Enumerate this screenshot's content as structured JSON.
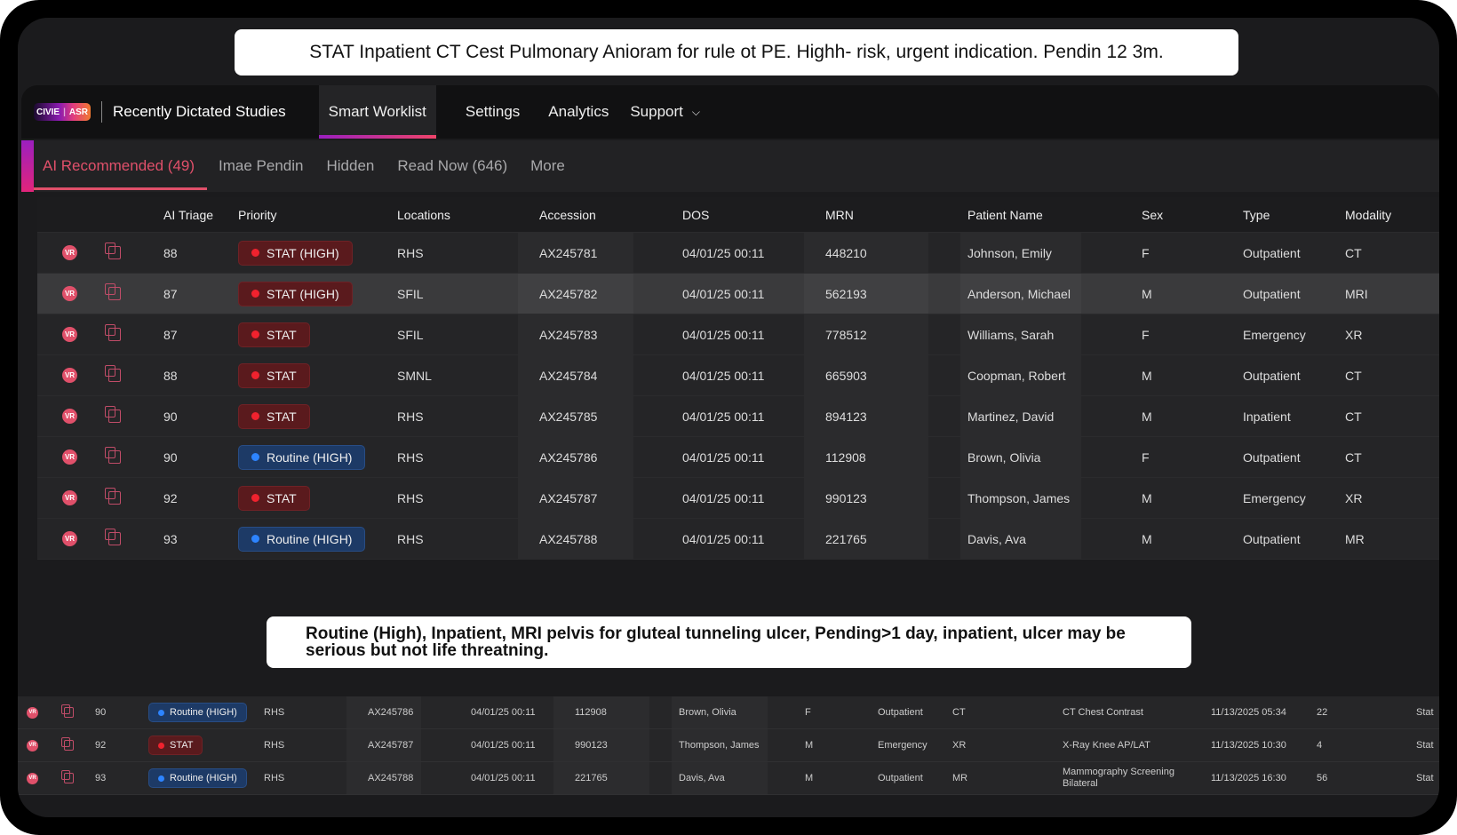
{
  "callouts": {
    "top": "STAT Inpatient CT Cest Pulmonary Anioram for rule ot PE. Highh- risk, urgent indication. Pendin 12 3m.",
    "bottom": "Routine (High), Inpatient, MRI pelvis for gluteal tunneling ulcer, Pending>1 day, inpatient, ulcer may be serious but not life threatning."
  },
  "nav": {
    "logo_left": "CIVIE",
    "logo_right": "ASR",
    "title": "Recently Dictated Studies",
    "tabs": [
      "Smart Worklist",
      "Settings",
      "Analytics",
      "Support"
    ],
    "support_icon": "chevron-down-icon"
  },
  "subtabs": [
    "AI Recommended (49)",
    "Imae Pendin",
    "Hidden",
    "Read Now (646)",
    "More"
  ],
  "colors": {
    "accent": "#e0506a",
    "stat": "#f0222e",
    "routine": "#2d84ff"
  },
  "table": {
    "headers": [
      "AI Triage",
      "Priority",
      "Locations",
      "Accession",
      "DOS",
      "MRN",
      "Patient Name",
      "Sex",
      "Type",
      "Modality"
    ],
    "rows": [
      {
        "triage": "88",
        "priority": "STAT (HIGH)",
        "kind": "stat",
        "loc": "RHS",
        "acc": "AX245781",
        "dos": "04/01/25  00:11",
        "mrn": "448210",
        "name": "Johnson, Emily",
        "sex": "F",
        "type": "Outpatient",
        "mod": "CT"
      },
      {
        "triage": "87",
        "priority": "STAT (HIGH)",
        "kind": "stat",
        "loc": "SFIL",
        "acc": "AX245782",
        "dos": "04/01/25  00:11",
        "mrn": "562193",
        "name": "Anderson, Michael",
        "sex": "M",
        "type": "Outpatient",
        "mod": "MRI"
      },
      {
        "triage": "87",
        "priority": "STAT",
        "kind": "stat",
        "loc": "SFIL",
        "acc": "AX245783",
        "dos": "04/01/25  00:11",
        "mrn": "778512",
        "name": "Williams, Sarah",
        "sex": "F",
        "type": "Emergency",
        "mod": "XR"
      },
      {
        "triage": "88",
        "priority": "STAT",
        "kind": "stat",
        "loc": "SMNL",
        "acc": "AX245784",
        "dos": "04/01/25  00:11",
        "mrn": "665903",
        "name": "Coopman, Robert",
        "sex": "M",
        "type": "Outpatient",
        "mod": "CT"
      },
      {
        "triage": "90",
        "priority": "STAT",
        "kind": "stat",
        "loc": "RHS",
        "acc": "AX245785",
        "dos": "04/01/25  00:11",
        "mrn": "894123",
        "name": "Martinez, David",
        "sex": "M",
        "type": "Inpatient",
        "mod": "CT"
      },
      {
        "triage": "90",
        "priority": "Routine (HIGH)",
        "kind": "routine",
        "loc": "RHS",
        "acc": "AX245786",
        "dos": "04/01/25  00:11",
        "mrn": "112908",
        "name": "Brown, Olivia",
        "sex": "F",
        "type": "Outpatient",
        "mod": "CT"
      },
      {
        "triage": "92",
        "priority": "STAT",
        "kind": "stat",
        "loc": "RHS",
        "acc": "AX245787",
        "dos": "04/01/25  00:11",
        "mrn": "990123",
        "name": "Thompson, James",
        "sex": "M",
        "type": "Emergency",
        "mod": "XR"
      },
      {
        "triage": "93",
        "priority": "Routine (HIGH)",
        "kind": "routine",
        "loc": "RHS",
        "acc": "AX245788",
        "dos": "04/01/25  00:11",
        "mrn": "221765",
        "name": "Davis, Ava",
        "sex": "M",
        "type": "Outpatient",
        "mod": "MR"
      }
    ]
  },
  "table2": {
    "rows": [
      {
        "triage": "90",
        "priority": "Routine (HIGH)",
        "kind": "routine",
        "loc": "RHS",
        "acc": "AX245786",
        "dos": "04/01/25  00:11",
        "mrn": "112908",
        "name": "Brown, Olivia",
        "sex": "F",
        "type": "Outpatient",
        "mod": "CT",
        "desc": "CT Chest Contrast",
        "date": "11/13/2025  05:34",
        "count": "22",
        "status": "Stat"
      },
      {
        "triage": "92",
        "priority": "STAT",
        "kind": "stat",
        "loc": "RHS",
        "acc": "AX245787",
        "dos": "04/01/25  00:11",
        "mrn": "990123",
        "name": "Thompson, James",
        "sex": "M",
        "type": "Emergency",
        "mod": "XR",
        "desc": "X-Ray Knee AP/LAT",
        "date": "11/13/2025  10:30",
        "count": "4",
        "status": "Stat"
      },
      {
        "triage": "93",
        "priority": "Routine (HIGH)",
        "kind": "routine",
        "loc": "RHS",
        "acc": "AX245788",
        "dos": "04/01/25  00:11",
        "mrn": "221765",
        "name": "Davis, Ava",
        "sex": "M",
        "type": "Outpatient",
        "mod": "MR",
        "desc": "Mammography Screening Bilateral",
        "date": "11/13/2025  16:30",
        "count": "56",
        "status": "Stat"
      }
    ]
  }
}
